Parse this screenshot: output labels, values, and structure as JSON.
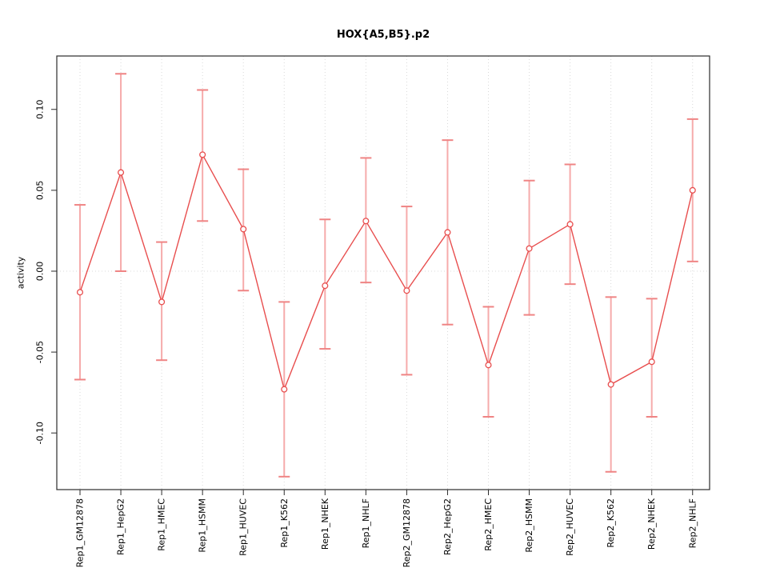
{
  "chart_data": {
    "type": "line",
    "title": "HOX{A5,B5}.p2",
    "xlabel": "",
    "ylabel": "activity",
    "legend": "none",
    "grid": "vertical dotted gridline at each category; dotted horizontal line at y=0",
    "categories": [
      "Rep1_GM12878",
      "Rep1_HepG2",
      "Rep1_HMEC",
      "Rep1_HSMM",
      "Rep1_HUVEC",
      "Rep1_K562",
      "Rep1_NHEK",
      "Rep1_NHLF",
      "Rep2_GM12878",
      "Rep2_HepG2",
      "Rep2_HMEC",
      "Rep2_HSMM",
      "Rep2_HUVEC",
      "Rep2_K562",
      "Rep2_NHEK",
      "Rep2_NHLF"
    ],
    "series": [
      {
        "name": "activity",
        "values": [
          -0.013,
          0.061,
          -0.019,
          0.072,
          0.026,
          -0.073,
          -0.009,
          0.031,
          -0.012,
          0.024,
          -0.058,
          0.014,
          0.029,
          -0.07,
          -0.056,
          0.05
        ],
        "err_hi": [
          0.041,
          0.122,
          0.018,
          0.112,
          0.063,
          -0.019,
          0.032,
          0.07,
          0.04,
          0.081,
          -0.022,
          0.056,
          0.066,
          -0.016,
          -0.017,
          0.094
        ],
        "err_lo": [
          -0.067,
          0.0,
          -0.055,
          0.031,
          -0.012,
          -0.127,
          -0.048,
          -0.007,
          -0.064,
          -0.033,
          -0.09,
          -0.027,
          -0.008,
          -0.124,
          -0.09,
          0.006
        ]
      }
    ],
    "yticks": [
      -0.1,
      -0.05,
      0.0,
      0.05,
      0.1
    ],
    "ytick_labels": [
      "-0.10",
      "-0.05",
      "0.00",
      "0.05",
      "0.10"
    ],
    "ylim": [
      -0.135,
      0.133
    ],
    "colors": {
      "line": "#e84e4e",
      "point": "#e84e4e",
      "error_bar": "#f6abab",
      "error_cap": "#ef8484",
      "grid": "#d9d9d9",
      "zero_line": "#d9d9d9",
      "axis": "#2b2b2b",
      "text": "#000000"
    }
  }
}
